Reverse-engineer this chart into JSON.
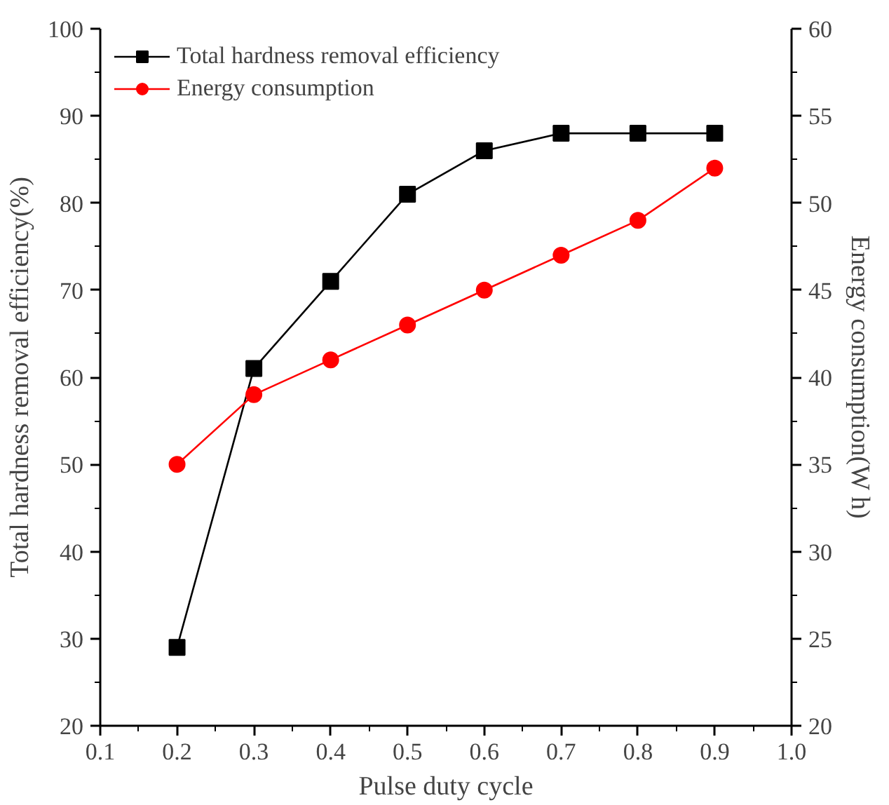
{
  "chart_data": {
    "type": "line",
    "xlabel": "Pulse duty cycle",
    "ylabel": "Total hardness removal efficiency(%)",
    "y2label": "Energy consumption(W h)",
    "x": [
      0.2,
      0.3,
      0.4,
      0.5,
      0.6,
      0.7,
      0.8,
      0.9
    ],
    "series": [
      {
        "name": "Total hardness removal efficiency",
        "color": "#000000",
        "marker": "square",
        "values": [
          29,
          61,
          71,
          81,
          86,
          88,
          88,
          88
        ]
      },
      {
        "name": "Energy consumption",
        "color": "#ff0000",
        "marker": "circle",
        "axis": "y2",
        "values": [
          35,
          39,
          41,
          43,
          45,
          47,
          49,
          52
        ]
      }
    ],
    "xlim": [
      0.1,
      1.0
    ],
    "xticks": [
      0.1,
      0.2,
      0.3,
      0.4,
      0.5,
      0.6,
      0.7,
      0.8,
      0.9,
      {
        "value": 1.0,
        "label": "1.0"
      }
    ],
    "ylim": [
      20,
      100
    ],
    "yticks": [
      20,
      30,
      40,
      50,
      60,
      70,
      80,
      90,
      100
    ],
    "y2lim": [
      20,
      60
    ],
    "y2ticks": [
      20,
      25,
      30,
      35,
      40,
      45,
      50,
      55,
      60
    ],
    "legend": "top left",
    "grid": false,
    "line_style": "solid"
  }
}
